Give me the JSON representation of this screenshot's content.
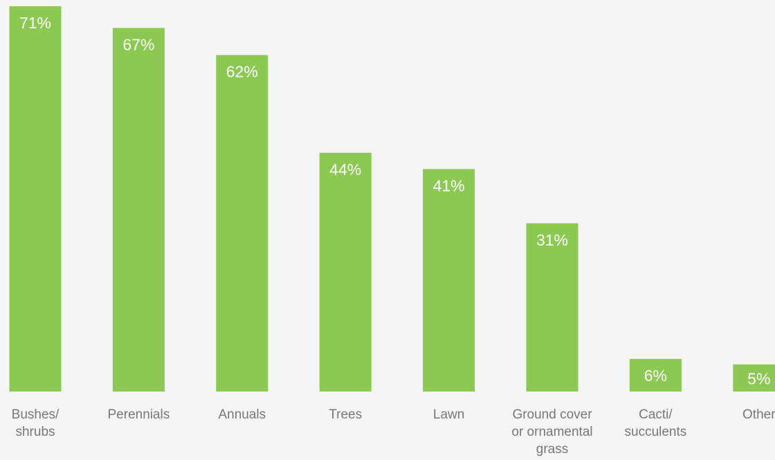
{
  "chart_data": {
    "type": "bar",
    "title": "",
    "xlabel": "",
    "ylabel": "",
    "ylim": [
      0,
      71
    ],
    "grid": false,
    "legend": "none",
    "categories": [
      [
        "Bushes/",
        "shrubs"
      ],
      [
        "Perennials"
      ],
      [
        "Annuals"
      ],
      [
        "Trees"
      ],
      [
        "Lawn"
      ],
      [
        "Ground cover",
        "or ornamental",
        "grass"
      ],
      [
        "Cacti/",
        "succulents"
      ],
      [
        "Other"
      ]
    ],
    "values": [
      71,
      67,
      62,
      44,
      41,
      31,
      6,
      5
    ],
    "value_labels": [
      "71%",
      "67%",
      "62%",
      "44%",
      "41%",
      "31%",
      "6%",
      "5%"
    ],
    "colors": {
      "bar": "#8cc953",
      "label_inside": "#ffffff",
      "label_outside": "#666666",
      "category_text": "#777777",
      "background": "#f5f5f5"
    }
  }
}
